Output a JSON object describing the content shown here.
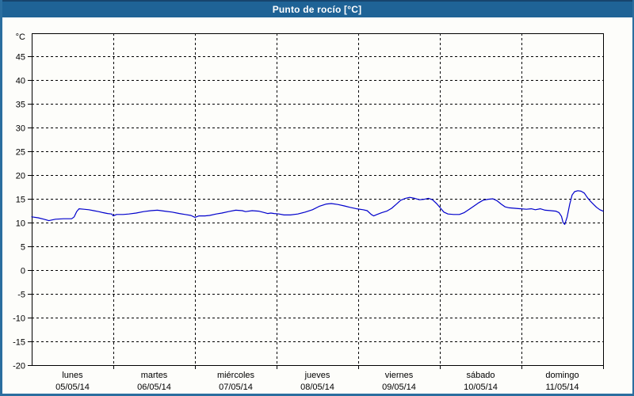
{
  "window": {
    "title": "Punto de rocío [°C]"
  },
  "colors": {
    "header_bg": "#1f6396",
    "header_top_edge": "#17456d",
    "header_text": "#ffffff",
    "page_border": "#2b6e9f",
    "page_bg": "#fdfdfa",
    "frame": "#000000",
    "grid": "#000000",
    "axis_text": "#000000",
    "line": "#0000cc"
  },
  "chart_data": {
    "type": "line",
    "title": "Punto de rocío [°C]",
    "ylabel": "°C",
    "xlabel": "",
    "ylim": [
      -20,
      50
    ],
    "ytick_interval": 5,
    "yticks": [
      45,
      40,
      35,
      30,
      25,
      20,
      15,
      10,
      5,
      0,
      -5,
      -10,
      -15,
      -20
    ],
    "grid": "dashed",
    "legend": "none",
    "x_days": [
      {
        "name": "lunes",
        "date": "05/05/14"
      },
      {
        "name": "martes",
        "date": "06/05/14"
      },
      {
        "name": "miércoles",
        "date": "07/05/14"
      },
      {
        "name": "jueves",
        "date": "08/05/14"
      },
      {
        "name": "viernes",
        "date": "09/05/14"
      },
      {
        "name": "sábado",
        "date": "10/05/14"
      },
      {
        "name": "domingo",
        "date": "11/05/14"
      }
    ],
    "series": [
      {
        "name": "Punto de rocío [°C]",
        "color": "#0000cc",
        "x_unit": "days_since_start_of_05/05/14",
        "points": [
          [
            0.0,
            11.2
          ],
          [
            0.08,
            11.0
          ],
          [
            0.15,
            10.7
          ],
          [
            0.21,
            10.4
          ],
          [
            0.29,
            10.7
          ],
          [
            0.39,
            10.8
          ],
          [
            0.49,
            10.8
          ],
          [
            0.52,
            11.2
          ],
          [
            0.55,
            12.3
          ],
          [
            0.58,
            12.9
          ],
          [
            0.64,
            12.8
          ],
          [
            0.7,
            12.7
          ],
          [
            0.76,
            12.5
          ],
          [
            0.82,
            12.3
          ],
          [
            0.87,
            12.1
          ],
          [
            0.93,
            11.9
          ],
          [
            0.98,
            11.8
          ],
          [
            1.0,
            11.4
          ],
          [
            1.04,
            11.7
          ],
          [
            1.12,
            11.7
          ],
          [
            1.19,
            11.8
          ],
          [
            1.28,
            12.0
          ],
          [
            1.37,
            12.3
          ],
          [
            1.46,
            12.5
          ],
          [
            1.54,
            12.6
          ],
          [
            1.63,
            12.4
          ],
          [
            1.72,
            12.2
          ],
          [
            1.81,
            11.9
          ],
          [
            1.88,
            11.7
          ],
          [
            1.95,
            11.5
          ],
          [
            2.0,
            11.1
          ],
          [
            2.05,
            11.4
          ],
          [
            2.12,
            11.4
          ],
          [
            2.18,
            11.5
          ],
          [
            2.26,
            11.8
          ],
          [
            2.33,
            12.0
          ],
          [
            2.41,
            12.3
          ],
          [
            2.5,
            12.6
          ],
          [
            2.58,
            12.5
          ],
          [
            2.62,
            12.3
          ],
          [
            2.7,
            12.5
          ],
          [
            2.78,
            12.4
          ],
          [
            2.85,
            12.1
          ],
          [
            2.89,
            11.9
          ],
          [
            2.93,
            12.0
          ],
          [
            2.97,
            11.9
          ],
          [
            3.03,
            11.8
          ],
          [
            3.09,
            11.6
          ],
          [
            3.17,
            11.6
          ],
          [
            3.26,
            11.8
          ],
          [
            3.35,
            12.2
          ],
          [
            3.44,
            12.7
          ],
          [
            3.52,
            13.4
          ],
          [
            3.61,
            13.9
          ],
          [
            3.67,
            14.0
          ],
          [
            3.75,
            13.8
          ],
          [
            3.83,
            13.5
          ],
          [
            3.9,
            13.2
          ],
          [
            3.98,
            12.9
          ],
          [
            4.06,
            12.7
          ],
          [
            4.11,
            12.5
          ],
          [
            4.16,
            11.7
          ],
          [
            4.19,
            11.4
          ],
          [
            4.23,
            11.7
          ],
          [
            4.29,
            12.1
          ],
          [
            4.35,
            12.4
          ],
          [
            4.41,
            13.0
          ],
          [
            4.47,
            13.9
          ],
          [
            4.52,
            14.7
          ],
          [
            4.58,
            15.1
          ],
          [
            4.63,
            15.3
          ],
          [
            4.69,
            15.1
          ],
          [
            4.75,
            14.8
          ],
          [
            4.81,
            14.9
          ],
          [
            4.86,
            15.1
          ],
          [
            4.91,
            14.8
          ],
          [
            4.96,
            14.0
          ],
          [
            5.01,
            13.0
          ],
          [
            5.05,
            12.2
          ],
          [
            5.1,
            11.8
          ],
          [
            5.17,
            11.7
          ],
          [
            5.24,
            11.7
          ],
          [
            5.3,
            12.1
          ],
          [
            5.36,
            12.8
          ],
          [
            5.42,
            13.5
          ],
          [
            5.48,
            14.2
          ],
          [
            5.53,
            14.7
          ],
          [
            5.59,
            14.9
          ],
          [
            5.65,
            15.0
          ],
          [
            5.7,
            14.6
          ],
          [
            5.75,
            13.9
          ],
          [
            5.8,
            13.3
          ],
          [
            5.85,
            13.1
          ],
          [
            5.92,
            13.0
          ],
          [
            5.99,
            12.9
          ],
          [
            6.06,
            12.8
          ],
          [
            6.12,
            12.9
          ],
          [
            6.17,
            12.7
          ],
          [
            6.23,
            12.9
          ],
          [
            6.29,
            12.6
          ],
          [
            6.36,
            12.5
          ],
          [
            6.42,
            12.4
          ],
          [
            6.46,
            12.1
          ],
          [
            6.49,
            11.3
          ],
          [
            6.51,
            10.0
          ],
          [
            6.53,
            9.6
          ],
          [
            6.56,
            11.2
          ],
          [
            6.59,
            13.8
          ],
          [
            6.62,
            15.8
          ],
          [
            6.65,
            16.5
          ],
          [
            6.69,
            16.7
          ],
          [
            6.73,
            16.6
          ],
          [
            6.77,
            16.2
          ],
          [
            6.81,
            15.2
          ],
          [
            6.85,
            14.4
          ],
          [
            6.89,
            13.7
          ],
          [
            6.92,
            13.2
          ],
          [
            6.96,
            12.7
          ],
          [
            7.0,
            12.4
          ]
        ]
      }
    ]
  }
}
